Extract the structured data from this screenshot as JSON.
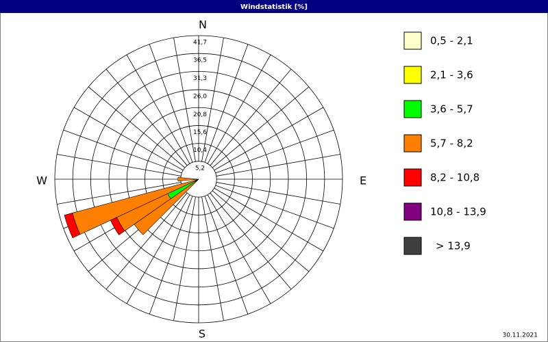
{
  "chart_data": {
    "type": "windrose",
    "title": "Windstatistik [%]",
    "date": "30.11.2021",
    "compass": [
      "N",
      "E",
      "S",
      "W"
    ],
    "x": [
      10,
      20,
      30,
      40,
      50,
      60,
      70,
      80,
      90,
      100,
      110,
      120,
      130,
      140,
      150,
      160,
      170,
      180,
      190,
      200,
      210,
      220,
      230,
      240,
      250,
      260,
      270,
      280,
      290,
      300,
      310,
      320,
      330,
      340,
      350,
      360
    ],
    "rlim": [
      0,
      41.7
    ],
    "rticks": [
      {
        "value": 5.2,
        "label": "5,2"
      },
      {
        "value": 10.4,
        "label": "10,4"
      },
      {
        "value": 15.6,
        "label": "15,6"
      },
      {
        "value": 20.8,
        "label": "20,8"
      },
      {
        "value": 26.0,
        "label": "26,0"
      },
      {
        "value": 31.3,
        "label": "31,3"
      },
      {
        "value": 36.5,
        "label": "36,5"
      },
      {
        "value": 41.7,
        "label": "41,7"
      }
    ],
    "series": [
      {
        "name": "0,5 - 2,1",
        "color": "#ffffcc",
        "values": [
          0,
          0,
          0,
          0,
          0,
          0,
          0,
          0,
          0,
          0,
          0,
          0,
          0,
          0,
          0,
          0,
          0,
          0,
          0,
          0,
          0,
          0,
          0,
          0,
          0,
          0,
          0,
          0,
          0,
          0,
          0,
          0,
          0,
          0,
          0,
          0
        ]
      },
      {
        "name": "2,1 - 3,6",
        "color": "#ffff00",
        "values": [
          0,
          0,
          0,
          0,
          0,
          0,
          0,
          0,
          0,
          0,
          0,
          0,
          0,
          0,
          0,
          0,
          0,
          0,
          0,
          0,
          0,
          0,
          0,
          0,
          0,
          0,
          0,
          0,
          0,
          0,
          0,
          0,
          0,
          0,
          0,
          0
        ]
      },
      {
        "name": "3,6 - 5,7",
        "color": "#00ff00",
        "values": [
          0,
          0,
          0,
          0,
          0,
          0,
          0,
          0,
          0,
          0,
          0,
          0,
          0,
          0,
          0,
          0,
          0,
          0,
          0,
          0,
          0,
          0,
          0,
          9.9,
          0,
          0,
          0,
          0,
          0,
          0,
          0,
          0,
          0,
          0,
          0,
          0
        ]
      },
      {
        "name": "5,7 - 8,2",
        "color": "#ff8000",
        "values": [
          0,
          0,
          0,
          0,
          0,
          0,
          0,
          0,
          0,
          0,
          0,
          0,
          0,
          0,
          0,
          0,
          0,
          0,
          0,
          0,
          0,
          0,
          22.8,
          16.3,
          37.9,
          0,
          6,
          0,
          0,
          0,
          0,
          0,
          0,
          0,
          0,
          0
        ]
      },
      {
        "name": "8,2 - 10,8",
        "color": "#ff0000",
        "values": [
          0,
          0,
          0,
          0,
          0,
          0,
          0,
          0,
          0,
          0,
          0,
          0,
          0,
          0,
          0,
          0,
          0,
          0,
          0,
          0,
          0,
          0,
          0,
          2,
          2.4,
          0,
          0,
          0,
          0,
          0,
          0,
          0,
          0,
          0,
          0,
          0
        ]
      },
      {
        "name": "10,8 - 13,9",
        "color": "#800080",
        "values": [
          0,
          0,
          0,
          0,
          0,
          0,
          0,
          0,
          0,
          0,
          0,
          0,
          0,
          0,
          0,
          0,
          0,
          0,
          0,
          0,
          0,
          0,
          0,
          0,
          0,
          0,
          0,
          0,
          0,
          0,
          0,
          0,
          0,
          0,
          0,
          0
        ]
      },
      {
        "name": "> 13,9",
        "color": "#404040",
        "values": [
          0,
          0,
          0,
          0,
          0,
          0,
          0,
          0,
          0,
          0,
          0,
          0,
          0,
          0,
          0,
          0,
          0,
          0,
          0,
          0,
          0,
          0,
          0,
          0,
          0,
          0,
          0,
          0,
          0,
          0,
          0,
          0,
          0,
          0,
          0,
          0
        ]
      }
    ]
  }
}
